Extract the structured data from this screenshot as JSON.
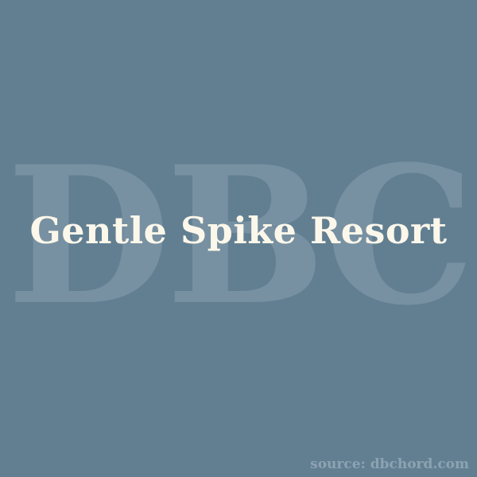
{
  "watermark": {
    "text": "DBC"
  },
  "title": {
    "text": "Gentle Spike Resort"
  },
  "footer": {
    "source": "source: dbchord.com"
  },
  "colors": {
    "background": "#627f92",
    "watermark": "#7891a2",
    "title": "#fbf7ea",
    "source": "#8da3b2"
  }
}
